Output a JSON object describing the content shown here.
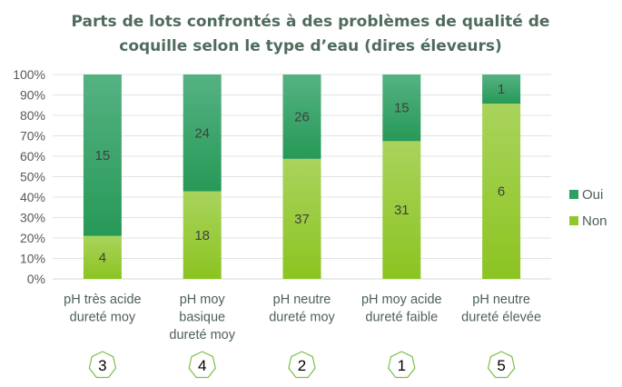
{
  "chart_data": {
    "type": "bar",
    "stacked": "percent",
    "title": [
      "Parts de lots confrontés à des problèmes de qualité de",
      "coquille selon le type d’eau (dires éleveurs)"
    ],
    "categories": [
      [
        "pH très acide",
        "dureté moy"
      ],
      [
        "pH moy",
        "basique",
        "dureté moy"
      ],
      [
        "pH neutre",
        "dureté moy"
      ],
      [
        "pH moy acide",
        "dureté faible"
      ],
      [
        "pH neutre",
        "dureté élevée"
      ]
    ],
    "category_badges": [
      "3",
      "4",
      "2",
      "1",
      "5"
    ],
    "series": [
      {
        "name": "Non",
        "values": [
          4,
          18,
          37,
          31,
          6
        ],
        "color": "#92c72a"
      },
      {
        "name": "Oui",
        "values": [
          15,
          24,
          26,
          15,
          1
        ],
        "color": "#2f9e62"
      }
    ],
    "yticks": [
      "0%",
      "10%",
      "20%",
      "30%",
      "40%",
      "50%",
      "60%",
      "70%",
      "80%",
      "90%",
      "100%"
    ],
    "ylim": [
      0,
      100
    ],
    "grid": true,
    "legend": {
      "placement": "right",
      "entries": [
        "Oui",
        "Non"
      ]
    }
  }
}
